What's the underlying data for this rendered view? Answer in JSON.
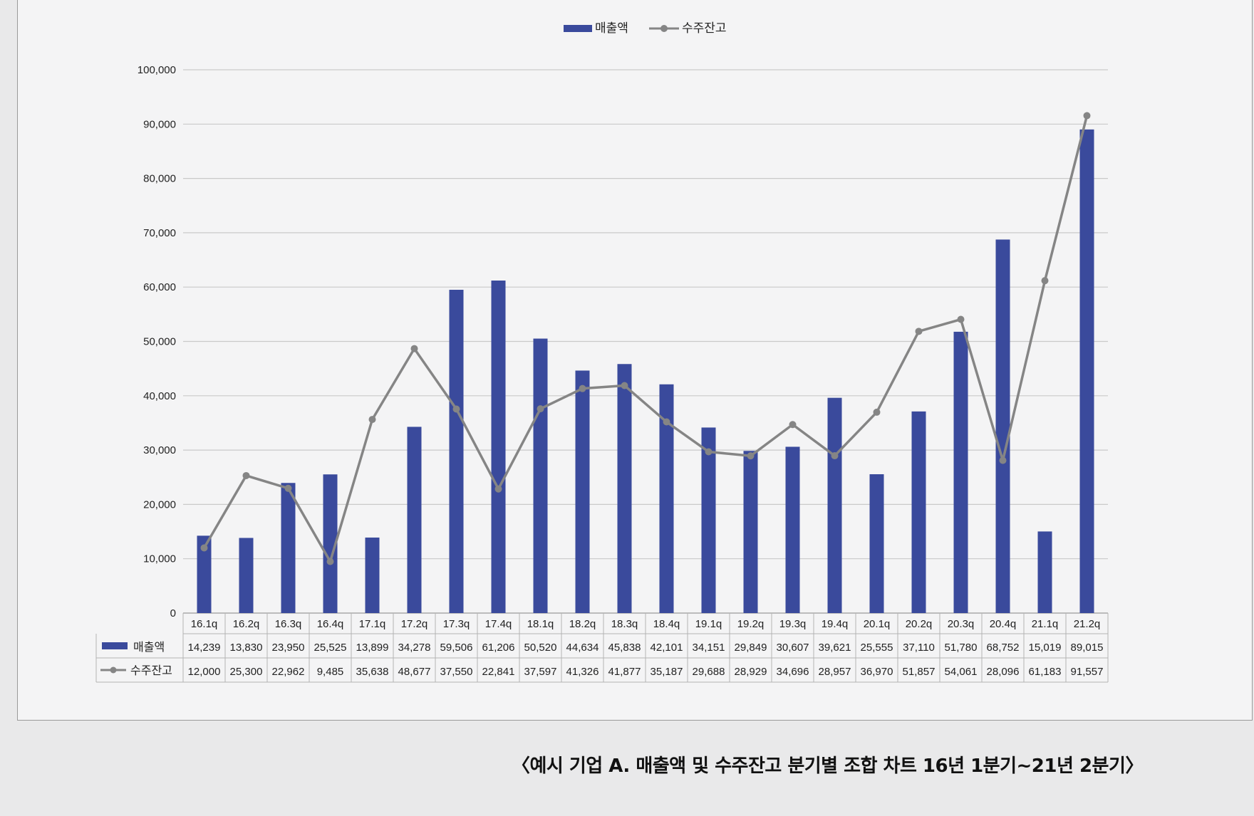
{
  "chart_data": {
    "type": "bar+line",
    "categories": [
      "16.1q",
      "16.2q",
      "16.3q",
      "16.4q",
      "17.1q",
      "17.2q",
      "17.3q",
      "17.4q",
      "18.1q",
      "18.2q",
      "18.3q",
      "18.4q",
      "19.1q",
      "19.2q",
      "19.3q",
      "19.4q",
      "20.1q",
      "20.2q",
      "20.3q",
      "20.4q",
      "21.1q",
      "21.2q"
    ],
    "series": [
      {
        "name": "매출액",
        "type": "bar",
        "color": "#3a4a9c",
        "values": [
          14239,
          13830,
          23950,
          25525,
          13899,
          34278,
          59506,
          61206,
          50520,
          44634,
          45838,
          42101,
          34151,
          29849,
          30607,
          39621,
          25555,
          37110,
          51780,
          68752,
          15019,
          89015
        ],
        "value_labels": [
          "14,239",
          "13,830",
          "23,950",
          "25,525",
          "13,899",
          "34,278",
          "59,506",
          "61,206",
          "50,520",
          "44,634",
          "45,838",
          "42,101",
          "34,151",
          "29,849",
          "30,607",
          "39,621",
          "25,555",
          "37,110",
          "51,780",
          "68,752",
          "15,019",
          "89,015"
        ]
      },
      {
        "name": "수주잔고",
        "type": "line",
        "color": "#858585",
        "values": [
          12000,
          25300,
          22962,
          9485,
          35638,
          48677,
          37550,
          22841,
          37597,
          41326,
          41877,
          35187,
          29688,
          28929,
          34696,
          28957,
          36970,
          51857,
          54061,
          28096,
          61183,
          91557
        ],
        "value_labels": [
          "12,000",
          "25,300",
          "22,962",
          "9,485",
          "35,638",
          "48,677",
          "37,550",
          "22,841",
          "37,597",
          "41,326",
          "41,877",
          "35,187",
          "29,688",
          "28,929",
          "34,696",
          "28,957",
          "36,970",
          "51,857",
          "54,061",
          "28,096",
          "61,183",
          "91,557"
        ]
      }
    ],
    "ylim": [
      0,
      100000
    ],
    "y_ticks": [
      0,
      10000,
      20000,
      30000,
      40000,
      50000,
      60000,
      70000,
      80000,
      90000,
      100000
    ],
    "y_tick_labels": [
      "0",
      "10,000",
      "20,000",
      "30,000",
      "40,000",
      "50,000",
      "60,000",
      "70,000",
      "80,000",
      "90,000",
      "100,000"
    ],
    "grid": true,
    "legend_position": "top-center",
    "data_table": true
  },
  "caption": "〈예시 기업 A. 매출액 및 수주잔고 분기별 조합 차트 16년 1분기~21년 2분기〉"
}
